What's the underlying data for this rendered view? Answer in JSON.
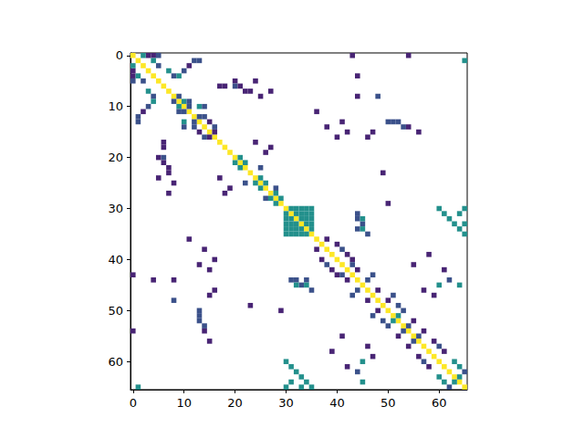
{
  "chart_data": {
    "type": "heatmap",
    "xlim": [
      -0.5,
      65.5
    ],
    "ylim": [
      65.5,
      -0.5
    ],
    "xticks": [
      0,
      10,
      20,
      30,
      40,
      50,
      60
    ],
    "yticks": [
      0,
      10,
      20,
      30,
      40,
      50,
      60
    ],
    "zlim": [
      0,
      1
    ],
    "grid": false,
    "cells": [
      [
        0,
        0,
        1
      ],
      [
        1,
        1,
        1
      ],
      [
        2,
        2,
        1
      ],
      [
        3,
        3,
        1
      ],
      [
        4,
        4,
        1
      ],
      [
        5,
        5,
        1
      ],
      [
        6,
        6,
        1
      ],
      [
        7,
        7,
        1
      ],
      [
        8,
        8,
        1
      ],
      [
        9,
        9,
        1
      ],
      [
        10,
        10,
        1
      ],
      [
        11,
        11,
        1
      ],
      [
        12,
        12,
        1
      ],
      [
        13,
        13,
        1
      ],
      [
        14,
        14,
        1
      ],
      [
        15,
        15,
        1
      ],
      [
        16,
        16,
        1
      ],
      [
        17,
        17,
        1
      ],
      [
        18,
        18,
        1
      ],
      [
        19,
        19,
        1
      ],
      [
        20,
        20,
        1
      ],
      [
        21,
        21,
        1
      ],
      [
        22,
        22,
        1
      ],
      [
        23,
        23,
        1
      ],
      [
        24,
        24,
        1
      ],
      [
        25,
        25,
        1
      ],
      [
        26,
        26,
        1
      ],
      [
        27,
        27,
        1
      ],
      [
        28,
        28,
        1
      ],
      [
        29,
        29,
        1
      ],
      [
        30,
        30,
        1
      ],
      [
        31,
        31,
        1
      ],
      [
        32,
        32,
        1
      ],
      [
        33,
        33,
        1
      ],
      [
        34,
        34,
        1
      ],
      [
        35,
        35,
        1
      ],
      [
        36,
        36,
        1
      ],
      [
        37,
        37,
        1
      ],
      [
        38,
        38,
        1
      ],
      [
        39,
        39,
        1
      ],
      [
        40,
        40,
        1
      ],
      [
        41,
        41,
        1
      ],
      [
        42,
        42,
        1
      ],
      [
        43,
        43,
        1
      ],
      [
        44,
        44,
        1
      ],
      [
        45,
        45,
        1
      ],
      [
        46,
        46,
        1
      ],
      [
        47,
        47,
        1
      ],
      [
        48,
        48,
        1
      ],
      [
        49,
        49,
        1
      ],
      [
        50,
        50,
        1
      ],
      [
        51,
        51,
        1
      ],
      [
        52,
        52,
        1
      ],
      [
        53,
        53,
        1
      ],
      [
        54,
        54,
        1
      ],
      [
        55,
        55,
        1
      ],
      [
        56,
        56,
        1
      ],
      [
        57,
        57,
        1
      ],
      [
        58,
        58,
        1
      ],
      [
        59,
        59,
        1
      ],
      [
        60,
        60,
        1
      ],
      [
        61,
        61,
        1
      ],
      [
        62,
        62,
        1
      ],
      [
        63,
        63,
        1
      ],
      [
        64,
        64,
        1
      ],
      [
        65,
        65,
        1
      ],
      [
        3,
        0,
        0.1
      ],
      [
        0,
        3,
        0.1
      ],
      [
        4,
        0,
        0.1
      ],
      [
        0,
        4,
        0.1
      ],
      [
        5,
        0,
        0.25
      ],
      [
        0,
        5,
        0.25
      ],
      [
        43,
        0,
        0.1
      ],
      [
        0,
        43,
        0.1
      ],
      [
        54,
        0,
        0.1
      ],
      [
        0,
        54,
        0.1
      ],
      [
        2,
        0,
        0.5
      ],
      [
        0,
        2,
        0.5
      ],
      [
        4,
        1,
        0.5
      ],
      [
        1,
        4,
        0.5
      ],
      [
        12,
        1,
        0.25
      ],
      [
        1,
        12,
        0.25
      ],
      [
        13,
        1,
        0.25
      ],
      [
        1,
        13,
        0.25
      ],
      [
        65,
        1,
        0.5
      ],
      [
        1,
        65,
        0.5
      ],
      [
        5,
        2,
        0.25
      ],
      [
        2,
        5,
        0.25
      ],
      [
        11,
        2,
        0.1
      ],
      [
        2,
        11,
        0.1
      ],
      [
        7,
        3,
        0.5
      ],
      [
        3,
        7,
        0.5
      ],
      [
        10,
        3,
        0.25
      ],
      [
        3,
        10,
        0.25
      ],
      [
        8,
        4,
        0.25
      ],
      [
        4,
        8,
        0.25
      ],
      [
        9,
        4,
        0.5
      ],
      [
        4,
        9,
        0.5
      ],
      [
        44,
        4,
        0.1
      ],
      [
        4,
        44,
        0.1
      ],
      [
        20,
        5,
        0.1
      ],
      [
        5,
        20,
        0.1
      ],
      [
        24,
        5,
        0.1
      ],
      [
        5,
        24,
        0.1
      ],
      [
        17,
        6,
        0.1
      ],
      [
        6,
        17,
        0.1
      ],
      [
        18,
        6,
        0.1
      ],
      [
        6,
        18,
        0.1
      ],
      [
        20,
        6,
        0.25
      ],
      [
        6,
        20,
        0.25
      ],
      [
        21,
        6,
        0.1
      ],
      [
        6,
        21,
        0.1
      ],
      [
        22,
        7,
        0.1
      ],
      [
        7,
        22,
        0.1
      ],
      [
        23,
        7,
        0.1
      ],
      [
        7,
        23,
        0.1
      ],
      [
        27,
        7,
        0.1
      ],
      [
        7,
        27,
        0.1
      ],
      [
        9,
        8,
        0.25
      ],
      [
        8,
        9,
        0.25
      ],
      [
        25,
        8,
        0.1
      ],
      [
        8,
        25,
        0.1
      ],
      [
        44,
        8,
        0.1
      ],
      [
        8,
        44,
        0.1
      ],
      [
        48,
        8,
        0.25
      ],
      [
        8,
        48,
        0.25
      ],
      [
        10,
        9,
        0.5
      ],
      [
        9,
        10,
        0.5
      ],
      [
        11,
        9,
        0.25
      ],
      [
        9,
        11,
        0.25
      ],
      [
        11,
        10,
        0.25
      ],
      [
        10,
        11,
        0.25
      ],
      [
        13,
        10,
        0.5
      ],
      [
        10,
        13,
        0.5
      ],
      [
        14,
        10,
        0.25
      ],
      [
        10,
        14,
        0.25
      ],
      [
        36,
        11,
        0.1
      ],
      [
        11,
        36,
        0.1
      ],
      [
        13,
        12,
        0.25
      ],
      [
        12,
        13,
        0.25
      ],
      [
        14,
        12,
        0.25
      ],
      [
        12,
        14,
        0.25
      ],
      [
        15,
        13,
        0.1
      ],
      [
        13,
        15,
        0.1
      ],
      [
        41,
        13,
        0.1
      ],
      [
        13,
        41,
        0.1
      ],
      [
        50,
        13,
        0.25
      ],
      [
        13,
        50,
        0.25
      ],
      [
        51,
        13,
        0.25
      ],
      [
        13,
        51,
        0.25
      ],
      [
        52,
        13,
        0.25
      ],
      [
        13,
        52,
        0.25
      ],
      [
        16,
        14,
        0.25
      ],
      [
        14,
        16,
        0.25
      ],
      [
        38,
        14,
        0.1
      ],
      [
        14,
        38,
        0.1
      ],
      [
        53,
        14,
        0.25
      ],
      [
        14,
        53,
        0.25
      ],
      [
        54,
        14,
        0.1
      ],
      [
        14,
        54,
        0.1
      ],
      [
        16,
        15,
        0.1
      ],
      [
        15,
        16,
        0.1
      ],
      [
        42,
        15,
        0.1
      ],
      [
        15,
        42,
        0.1
      ],
      [
        47,
        15,
        0.1
      ],
      [
        15,
        47,
        0.1
      ],
      [
        56,
        15,
        0.1
      ],
      [
        15,
        56,
        0.1
      ],
      [
        40,
        16,
        0.1
      ],
      [
        16,
        40,
        0.1
      ],
      [
        46,
        16,
        0.1
      ],
      [
        16,
        46,
        0.1
      ],
      [
        24,
        17,
        0.1
      ],
      [
        17,
        24,
        0.1
      ],
      [
        27,
        18,
        0.1
      ],
      [
        18,
        27,
        0.1
      ],
      [
        26,
        19,
        0.1
      ],
      [
        19,
        26,
        0.1
      ],
      [
        21,
        20,
        0.5
      ],
      [
        20,
        21,
        0.5
      ],
      [
        22,
        21,
        0.5
      ],
      [
        21,
        22,
        0.5
      ],
      [
        25,
        22,
        0.25
      ],
      [
        22,
        25,
        0.25
      ],
      [
        49,
        23,
        0.1
      ],
      [
        23,
        49,
        0.1
      ],
      [
        25,
        24,
        0.5
      ],
      [
        24,
        25,
        0.5
      ],
      [
        26,
        25,
        0.5
      ],
      [
        25,
        26,
        0.5
      ],
      [
        28,
        26,
        0.25
      ],
      [
        26,
        28,
        0.25
      ],
      [
        28,
        27,
        0.5
      ],
      [
        27,
        28,
        0.5
      ],
      [
        29,
        28,
        0.5
      ],
      [
        28,
        29,
        0.5
      ],
      [
        50,
        29,
        0.1
      ],
      [
        29,
        50,
        0.1
      ],
      [
        31,
        30,
        0.5
      ],
      [
        30,
        31,
        0.5
      ],
      [
        32,
        30,
        0.5
      ],
      [
        30,
        32,
        0.5
      ],
      [
        33,
        30,
        0.5
      ],
      [
        30,
        33,
        0.5
      ],
      [
        34,
        30,
        0.5
      ],
      [
        30,
        34,
        0.5
      ],
      [
        35,
        30,
        0.5
      ],
      [
        30,
        35,
        0.5
      ],
      [
        32,
        31,
        0.5
      ],
      [
        31,
        32,
        0.5
      ],
      [
        33,
        31,
        0.5
      ],
      [
        31,
        33,
        0.5
      ],
      [
        34,
        31,
        0.5
      ],
      [
        31,
        34,
        0.5
      ],
      [
        35,
        31,
        0.5
      ],
      [
        31,
        35,
        0.5
      ],
      [
        33,
        32,
        0.5
      ],
      [
        32,
        33,
        0.5
      ],
      [
        34,
        32,
        0.5
      ],
      [
        32,
        34,
        0.5
      ],
      [
        35,
        32,
        0.5
      ],
      [
        32,
        35,
        0.5
      ],
      [
        34,
        33,
        0.5
      ],
      [
        33,
        34,
        0.5
      ],
      [
        35,
        33,
        0.5
      ],
      [
        33,
        35,
        0.5
      ],
      [
        35,
        34,
        0.5
      ],
      [
        34,
        35,
        0.5
      ],
      [
        44,
        31,
        0.25
      ],
      [
        31,
        44,
        0.25
      ],
      [
        44,
        32,
        0.25
      ],
      [
        32,
        44,
        0.25
      ],
      [
        45,
        33,
        0.25
      ],
      [
        33,
        45,
        0.25
      ],
      [
        44,
        34,
        0.25
      ],
      [
        34,
        44,
        0.25
      ],
      [
        46,
        35,
        0.25
      ],
      [
        35,
        46,
        0.25
      ],
      [
        60,
        30,
        0.5
      ],
      [
        30,
        60,
        0.5
      ],
      [
        61,
        31,
        0.5
      ],
      [
        31,
        61,
        0.5
      ],
      [
        62,
        32,
        0.5
      ],
      [
        32,
        62,
        0.5
      ],
      [
        63,
        33,
        0.5
      ],
      [
        33,
        63,
        0.5
      ],
      [
        64,
        34,
        0.5
      ],
      [
        34,
        64,
        0.5
      ],
      [
        65,
        35,
        0.5
      ],
      [
        35,
        65,
        0.5
      ],
      [
        65,
        30,
        0.5
      ],
      [
        30,
        65,
        0.5
      ],
      [
        64,
        31,
        0.5
      ],
      [
        31,
        64,
        0.5
      ],
      [
        65,
        33,
        0.5
      ],
      [
        33,
        65,
        0.5
      ],
      [
        45,
        32,
        0.5
      ],
      [
        32,
        45,
        0.5
      ],
      [
        45,
        34,
        0.5
      ],
      [
        34,
        45,
        0.5
      ],
      [
        38,
        36,
        0.1
      ],
      [
        36,
        38,
        0.1
      ],
      [
        40,
        37,
        0.1
      ],
      [
        37,
        40,
        0.1
      ],
      [
        41,
        38,
        0.25
      ],
      [
        38,
        41,
        0.25
      ],
      [
        42,
        39,
        0.1
      ],
      [
        39,
        42,
        0.1
      ],
      [
        43,
        40,
        0.1
      ],
      [
        40,
        43,
        0.1
      ],
      [
        43,
        41,
        0.25
      ],
      [
        41,
        43,
        0.25
      ],
      [
        55,
        41,
        0.1
      ],
      [
        41,
        55,
        0.1
      ],
      [
        44,
        42,
        0.1
      ],
      [
        42,
        44,
        0.1
      ],
      [
        47,
        43,
        0.25
      ],
      [
        43,
        47,
        0.25
      ],
      [
        46,
        44,
        0.25
      ],
      [
        44,
        46,
        0.25
      ],
      [
        64,
        45,
        0.5
      ],
      [
        45,
        64,
        0.5
      ],
      [
        60,
        45,
        0.5
      ],
      [
        45,
        60,
        0.5
      ],
      [
        48,
        46,
        0.1
      ],
      [
        46,
        48,
        0.1
      ],
      [
        51,
        47,
        0.25
      ],
      [
        47,
        51,
        0.25
      ],
      [
        50,
        48,
        0.1
      ],
      [
        48,
        50,
        0.1
      ],
      [
        52,
        49,
        0.25
      ],
      [
        49,
        52,
        0.25
      ],
      [
        53,
        50,
        0.25
      ],
      [
        50,
        53,
        0.25
      ],
      [
        52,
        51,
        0.5
      ],
      [
        51,
        52,
        0.5
      ],
      [
        55,
        52,
        0.1
      ],
      [
        52,
        55,
        0.1
      ],
      [
        54,
        53,
        0.25
      ],
      [
        53,
        54,
        0.25
      ],
      [
        57,
        54,
        0.1
      ],
      [
        54,
        57,
        0.1
      ],
      [
        56,
        55,
        0.25
      ],
      [
        55,
        56,
        0.25
      ],
      [
        59,
        56,
        0.1
      ],
      [
        56,
        59,
        0.1
      ],
      [
        60,
        57,
        0.25
      ],
      [
        57,
        60,
        0.25
      ],
      [
        61,
        58,
        0.1
      ],
      [
        58,
        61,
        0.1
      ],
      [
        63,
        60,
        0.5
      ],
      [
        60,
        63,
        0.5
      ],
      [
        64,
        61,
        0.5
      ],
      [
        61,
        64,
        0.5
      ],
      [
        65,
        62,
        0.25
      ],
      [
        62,
        65,
        0.25
      ],
      [
        64,
        63,
        0.5
      ],
      [
        63,
        64,
        0.5
      ],
      [
        58,
        39,
        0.1
      ],
      [
        39,
        58,
        0.1
      ],
      [
        61,
        42,
        0.1
      ],
      [
        42,
        61,
        0.1
      ],
      [
        62,
        44,
        0.25
      ],
      [
        44,
        62,
        0.25
      ],
      [
        57,
        46,
        0.1
      ],
      [
        46,
        57,
        0.1
      ],
      [
        59,
        47,
        0.1
      ],
      [
        47,
        59,
        0.1
      ]
    ]
  }
}
